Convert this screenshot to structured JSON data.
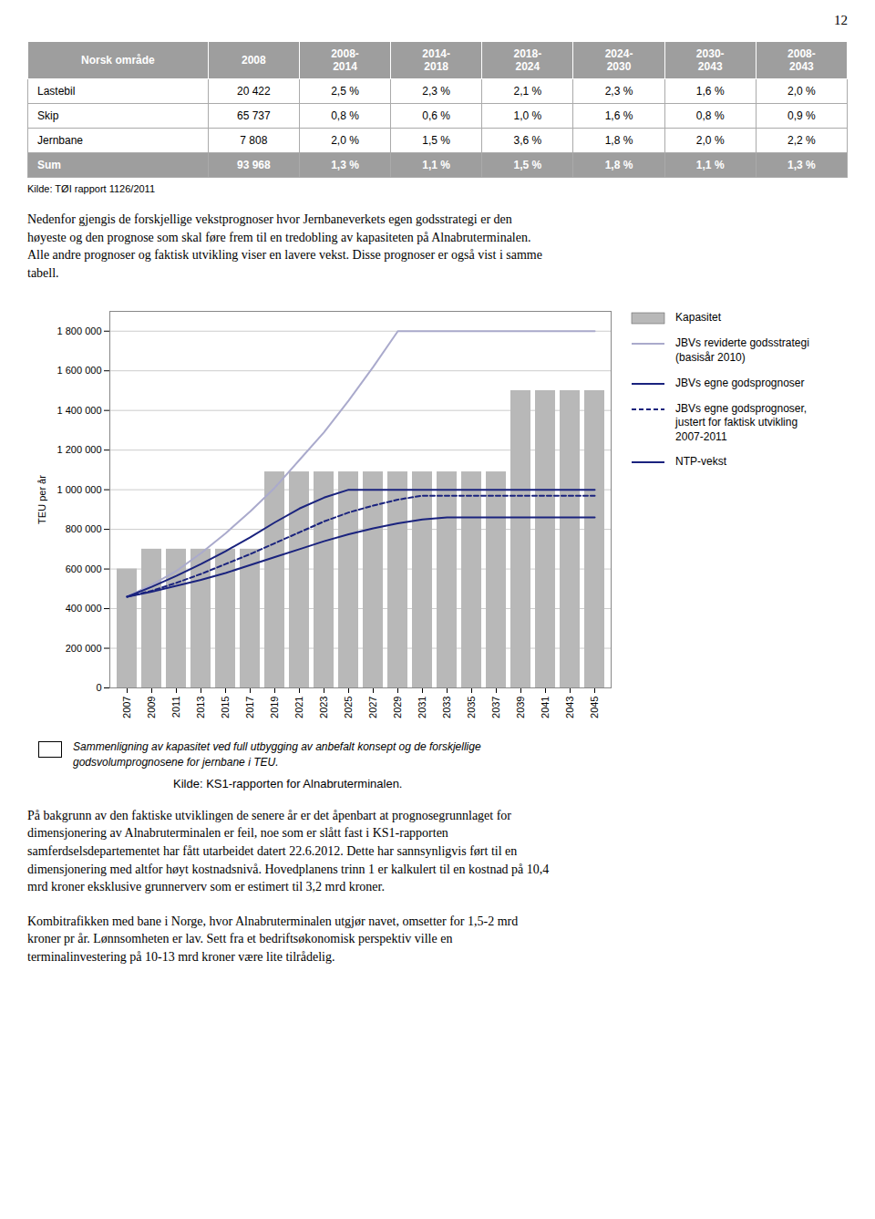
{
  "page_number": "12",
  "table": {
    "columns": [
      "Norsk område",
      "2008",
      "2008-\n2014",
      "2014-\n2018",
      "2018-\n2024",
      "2024-\n2030",
      "2030-\n2043",
      "2008-\n2043"
    ],
    "rows": [
      [
        "Lastebil",
        "20 422",
        "2,5 %",
        "2,3 %",
        "2,1 %",
        "2,3 %",
        "1,6 %",
        "2,0 %"
      ],
      [
        "Skip",
        "65 737",
        "0,8 %",
        "0,6 %",
        "1,0 %",
        "1,6 %",
        "0,8 %",
        "0,9 %"
      ],
      [
        "Jernbane",
        "7 808",
        "2,0 %",
        "1,5 %",
        "3,6 %",
        "1,8 %",
        "2,0 %",
        "2,2 %"
      ],
      [
        "Sum",
        "93 968",
        "1,3 %",
        "1,1 %",
        "1,5 %",
        "1,8 %",
        "1,1 %",
        "1,3 %"
      ]
    ],
    "header_color": "#9e9e9e",
    "sum_color": "#9e9e9e",
    "header_text_color": "#ffffff",
    "sum_text_color": "#ffffff",
    "source": "Kilde: TØI rapport 1126/2011"
  },
  "text_before": [
    "Nedenfor gjengis de forskjellige vekstprognoser hvor Jernbaneverkets egen godsstrategi er den\nhøyeste og den prognose som skal føre frem til en tredobling av kapasiteten på Alnabruterminalen.\nAlle andre prognoser og faktisk utvikling viser en lavere vekst. Disse prognoser er også vist i samme\ntabell."
  ],
  "text_after": [
    "På bakgrunn av den faktiske utviklingen de senere år er det åpenbart at prognosegrunnlaget for\ndimensjonering av Alnabruterminalen er feil, noe som er slått fast i KS1-rapporten\nsamferdselsdepartementet har fått utarbeidet datert 22.6.2012. Dette har sannsynligvis ført til en\ndimensjonering med altfor høyt kostnadsnivå. Hovedplanens trinn 1 er kalkulert til en kostnad på 10,4\nmrd kroner eksklusive grunnerverv som er estimert til 3,2 mrd kroner.",
    "Kombitrafikken med bane i Norge, hvor Alnabruterminalen utgjør navet, omsetter for 1,5-2 mrd\nkroner pr år. Lønnsomheten er lav. Sett fra et bedriftsøkonomisk perspektiv ville en\nterminalinvestering på 10-13 mrd kroner være lite tilrådelig."
  ],
  "chart_data": {
    "type": "bar",
    "ylabel": "TEU per år",
    "categories": [
      "2007",
      "2009",
      "2011",
      "2013",
      "2015",
      "2017",
      "2019",
      "2021",
      "2023",
      "2025",
      "2027",
      "2029",
      "2031",
      "2033",
      "2035",
      "2037",
      "2039",
      "2041",
      "2043",
      "2045"
    ],
    "series": [
      {
        "name": "Kapasitet",
        "type": "bar",
        "color": "#b8b8b8",
        "values": [
          600000,
          700000,
          700000,
          700000,
          700000,
          700000,
          1090000,
          1090000,
          1090000,
          1090000,
          1090000,
          1090000,
          1090000,
          1090000,
          1090000,
          1090000,
          1500000,
          1500000,
          1500000,
          1500000
        ]
      },
      {
        "name": "JBVs reviderte godsstrategi\n(basisår 2010)",
        "type": "line",
        "color": "#aaaacc",
        "line_style": "solid",
        "values": [
          460000,
          520000,
          590000,
          680000,
          780000,
          890000,
          1010000,
          1150000,
          1290000,
          1450000,
          1620000,
          1800000,
          1800000,
          1800000,
          1800000,
          1800000,
          1800000,
          1800000,
          1800000,
          1800000
        ]
      },
      {
        "name": "JBVs egne godsprognoser",
        "type": "line",
        "color": "#1a237e",
        "line_style": "solid",
        "values": [
          460000,
          510000,
          565000,
          625000,
          690000,
          760000,
          835000,
          905000,
          960000,
          1000000,
          1000000,
          1000000,
          1000000,
          1000000,
          1000000,
          1000000,
          1000000,
          1000000,
          1000000,
          1000000
        ]
      },
      {
        "name": "JBVs egne godsprognoser,\njustert for faktisk utvikling\n2007-2011",
        "type": "line",
        "color": "#1a237e",
        "line_style": "dashed",
        "values": [
          460000,
          490000,
          530000,
          575000,
          625000,
          675000,
          730000,
          785000,
          840000,
          885000,
          920000,
          950000,
          970000,
          970000,
          970000,
          970000,
          970000,
          970000,
          970000,
          970000
        ]
      },
      {
        "name": "NTP-vekst",
        "type": "line",
        "color": "#1a237e",
        "line_style": "solid",
        "values": [
          460000,
          485000,
          515000,
          545000,
          580000,
          620000,
          660000,
          700000,
          740000,
          775000,
          805000,
          830000,
          850000,
          860000,
          860000,
          860000,
          860000,
          860000,
          860000,
          860000
        ]
      }
    ],
    "ylim": [
      0,
      1900000
    ],
    "yticks": [
      0,
      {
        "value": 200000,
        "label": "200 000"
      },
      {
        "value": 400000,
        "label": "400 000"
      },
      {
        "value": 600000,
        "label": "600 000"
      },
      {
        "value": 800000,
        "label": "800 000"
      },
      {
        "value": 1000000,
        "label": "1 000 000"
      },
      {
        "value": 1200000,
        "label": "1 200 000"
      },
      {
        "value": 1400000,
        "label": "1 400 000"
      },
      {
        "value": 1600000,
        "label": "1 600 000"
      },
      {
        "value": 1800000,
        "label": "1 800 000"
      }
    ],
    "grid": true,
    "legend": "right",
    "caption": "Sammenligning av kapasitet ved full utbygging av anbefalt konsept og de forskjellige\ngodsvolumprognosene for jernbane i TEU.",
    "source": "Kilde: KS1-rapporten for Alnabruterminalen."
  }
}
